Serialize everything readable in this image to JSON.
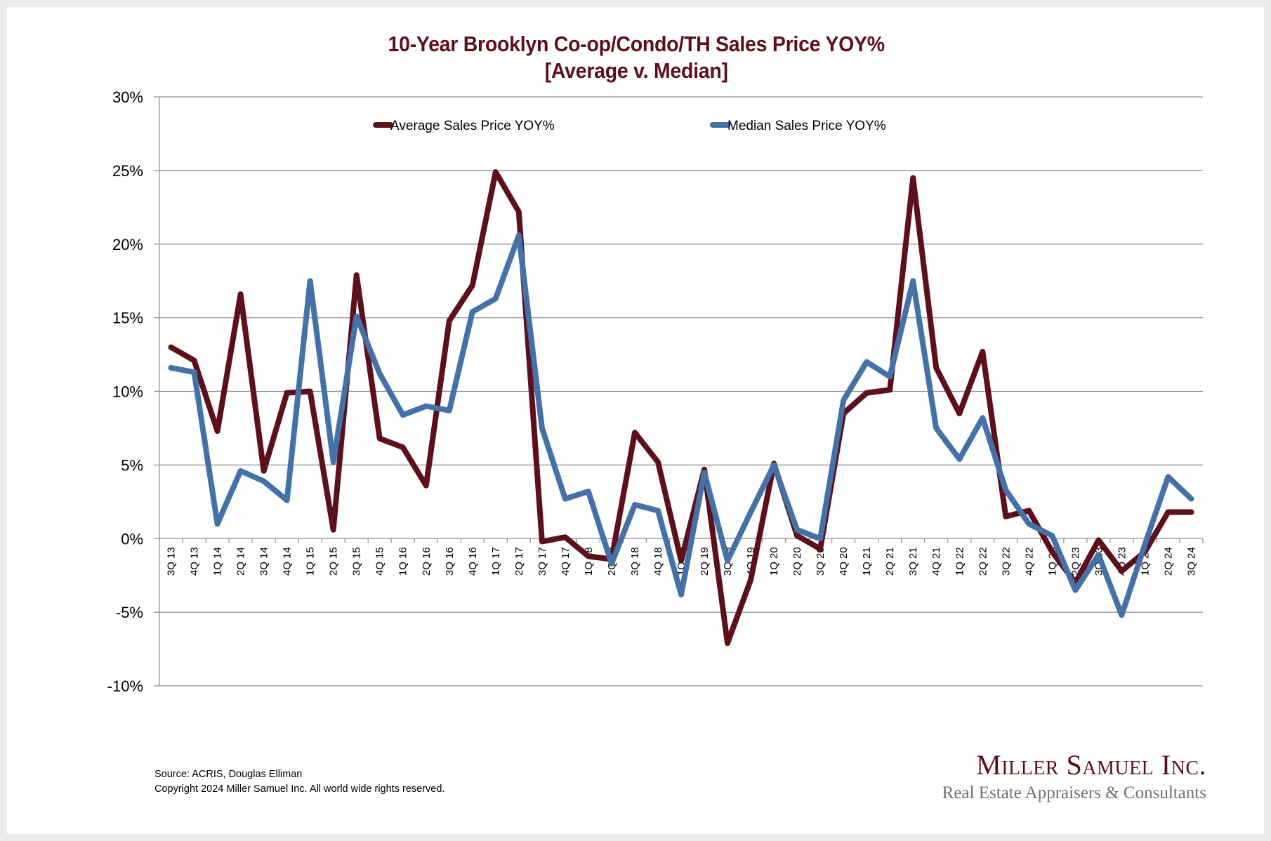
{
  "title_lines": [
    "10-Year Brooklyn Co-op/Condo/TH Sales Price YOY%",
    "[Average v. Median]"
  ],
  "footer": {
    "source": "Source: ACRIS, Douglas Elliman",
    "copyright": "Copyright 2024 Miller Samuel Inc.  All world wide rights reserved."
  },
  "logo": {
    "name": "Miller Samuel Inc.",
    "tagline": "Real Estate Appraisers & Consultants"
  },
  "colors": {
    "average": "#5e0f1c",
    "median": "#4472a8",
    "title": "#5e0f1c",
    "grid": "#8c8c8c"
  },
  "chart_data": {
    "type": "line",
    "title": "10-Year Brooklyn Co-op/Condo/TH Sales Price YOY% [Average v. Median]",
    "xlabel": "",
    "ylabel": "",
    "ylim": [
      -10,
      30
    ],
    "yticks": [
      30,
      25,
      20,
      15,
      10,
      5,
      0,
      -5,
      -10
    ],
    "ytick_labels": [
      "30%",
      "25%",
      "20%",
      "15%",
      "10%",
      "5%",
      "0%",
      "-5%",
      "-10%"
    ],
    "grid": true,
    "legend_position": "top-center",
    "categories": [
      "3Q 13",
      "4Q 13",
      "1Q 14",
      "2Q 14",
      "3Q 14",
      "4Q 14",
      "1Q 15",
      "2Q 15",
      "3Q 15",
      "4Q 15",
      "1Q 16",
      "2Q 16",
      "3Q 16",
      "4Q 16",
      "1Q 17",
      "2Q 17",
      "3Q 17",
      "4Q 17",
      "1Q 18",
      "2Q 18",
      "3Q 18",
      "4Q 18",
      "1Q 19",
      "2Q 19",
      "3Q 19",
      "4Q 19",
      "1Q 20",
      "2Q 20",
      "3Q 20",
      "4Q 20",
      "1Q 21",
      "2Q 21",
      "3Q 21",
      "4Q 21",
      "1Q 22",
      "2Q 22",
      "3Q 22",
      "4Q 22",
      "1Q 23",
      "2Q 23",
      "3Q 23",
      "4Q 23",
      "1Q 24",
      "2Q 24",
      "3Q 24"
    ],
    "series": [
      {
        "name": "Average Sales Price YOY%",
        "values": [
          13.0,
          12.1,
          7.3,
          16.6,
          4.6,
          9.9,
          10.0,
          0.6,
          17.9,
          6.8,
          6.2,
          3.6,
          14.8,
          17.2,
          24.9,
          22.2,
          -0.2,
          0.1,
          -1.2,
          -1.4,
          7.2,
          5.2,
          -1.5,
          4.7,
          -7.1,
          -2.8,
          5.1,
          0.2,
          -0.7,
          8.5,
          9.9,
          10.1,
          24.5,
          11.6,
          8.5,
          12.7,
          1.5,
          1.9,
          -0.9,
          -3.0,
          -0.1,
          -2.2,
          -0.9,
          1.8,
          1.8
        ]
      },
      {
        "name": "Median Sales Price YOY%",
        "values": [
          11.6,
          11.3,
          1.0,
          4.6,
          3.9,
          2.6,
          17.5,
          5.2,
          15.1,
          11.2,
          8.4,
          9.0,
          8.7,
          15.4,
          16.3,
          20.6,
          7.5,
          2.7,
          3.2,
          -1.7,
          2.3,
          1.9,
          -3.8,
          4.5,
          -1.5,
          1.8,
          5.0,
          0.6,
          0.0,
          9.4,
          12.0,
          11.0,
          17.5,
          7.5,
          5.4,
          8.2,
          3.3,
          1.0,
          0.2,
          -3.5,
          -1.1,
          -5.2,
          -0.4,
          4.2,
          2.7
        ]
      }
    ]
  }
}
